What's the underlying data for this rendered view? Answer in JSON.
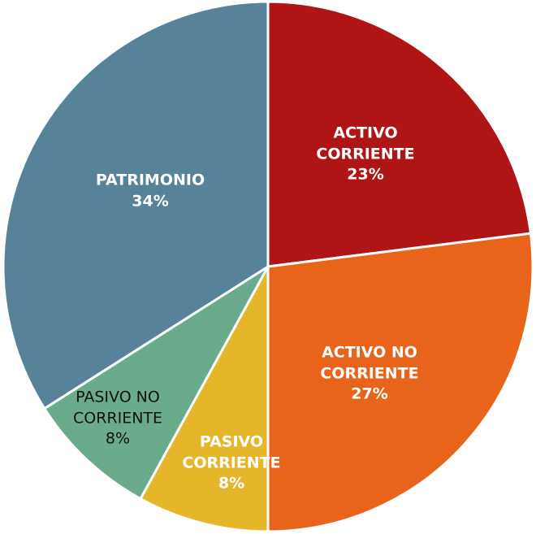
{
  "chart_data": {
    "type": "pie",
    "categories": [
      "ACTIVO CORRIENTE",
      "ACTIVO NO CORRIENTE",
      "PASIVO CORRIENTE",
      "PASIVO NO CORRIENTE",
      "PATRIMONIO"
    ],
    "values": [
      23,
      27,
      8,
      8,
      34
    ],
    "value_labels": [
      "23%",
      "27%",
      "8%",
      "8%",
      "34%"
    ],
    "colors": [
      "#b01515",
      "#e8641a",
      "#e5b62a",
      "#69ab8b",
      "#56829a"
    ]
  }
}
